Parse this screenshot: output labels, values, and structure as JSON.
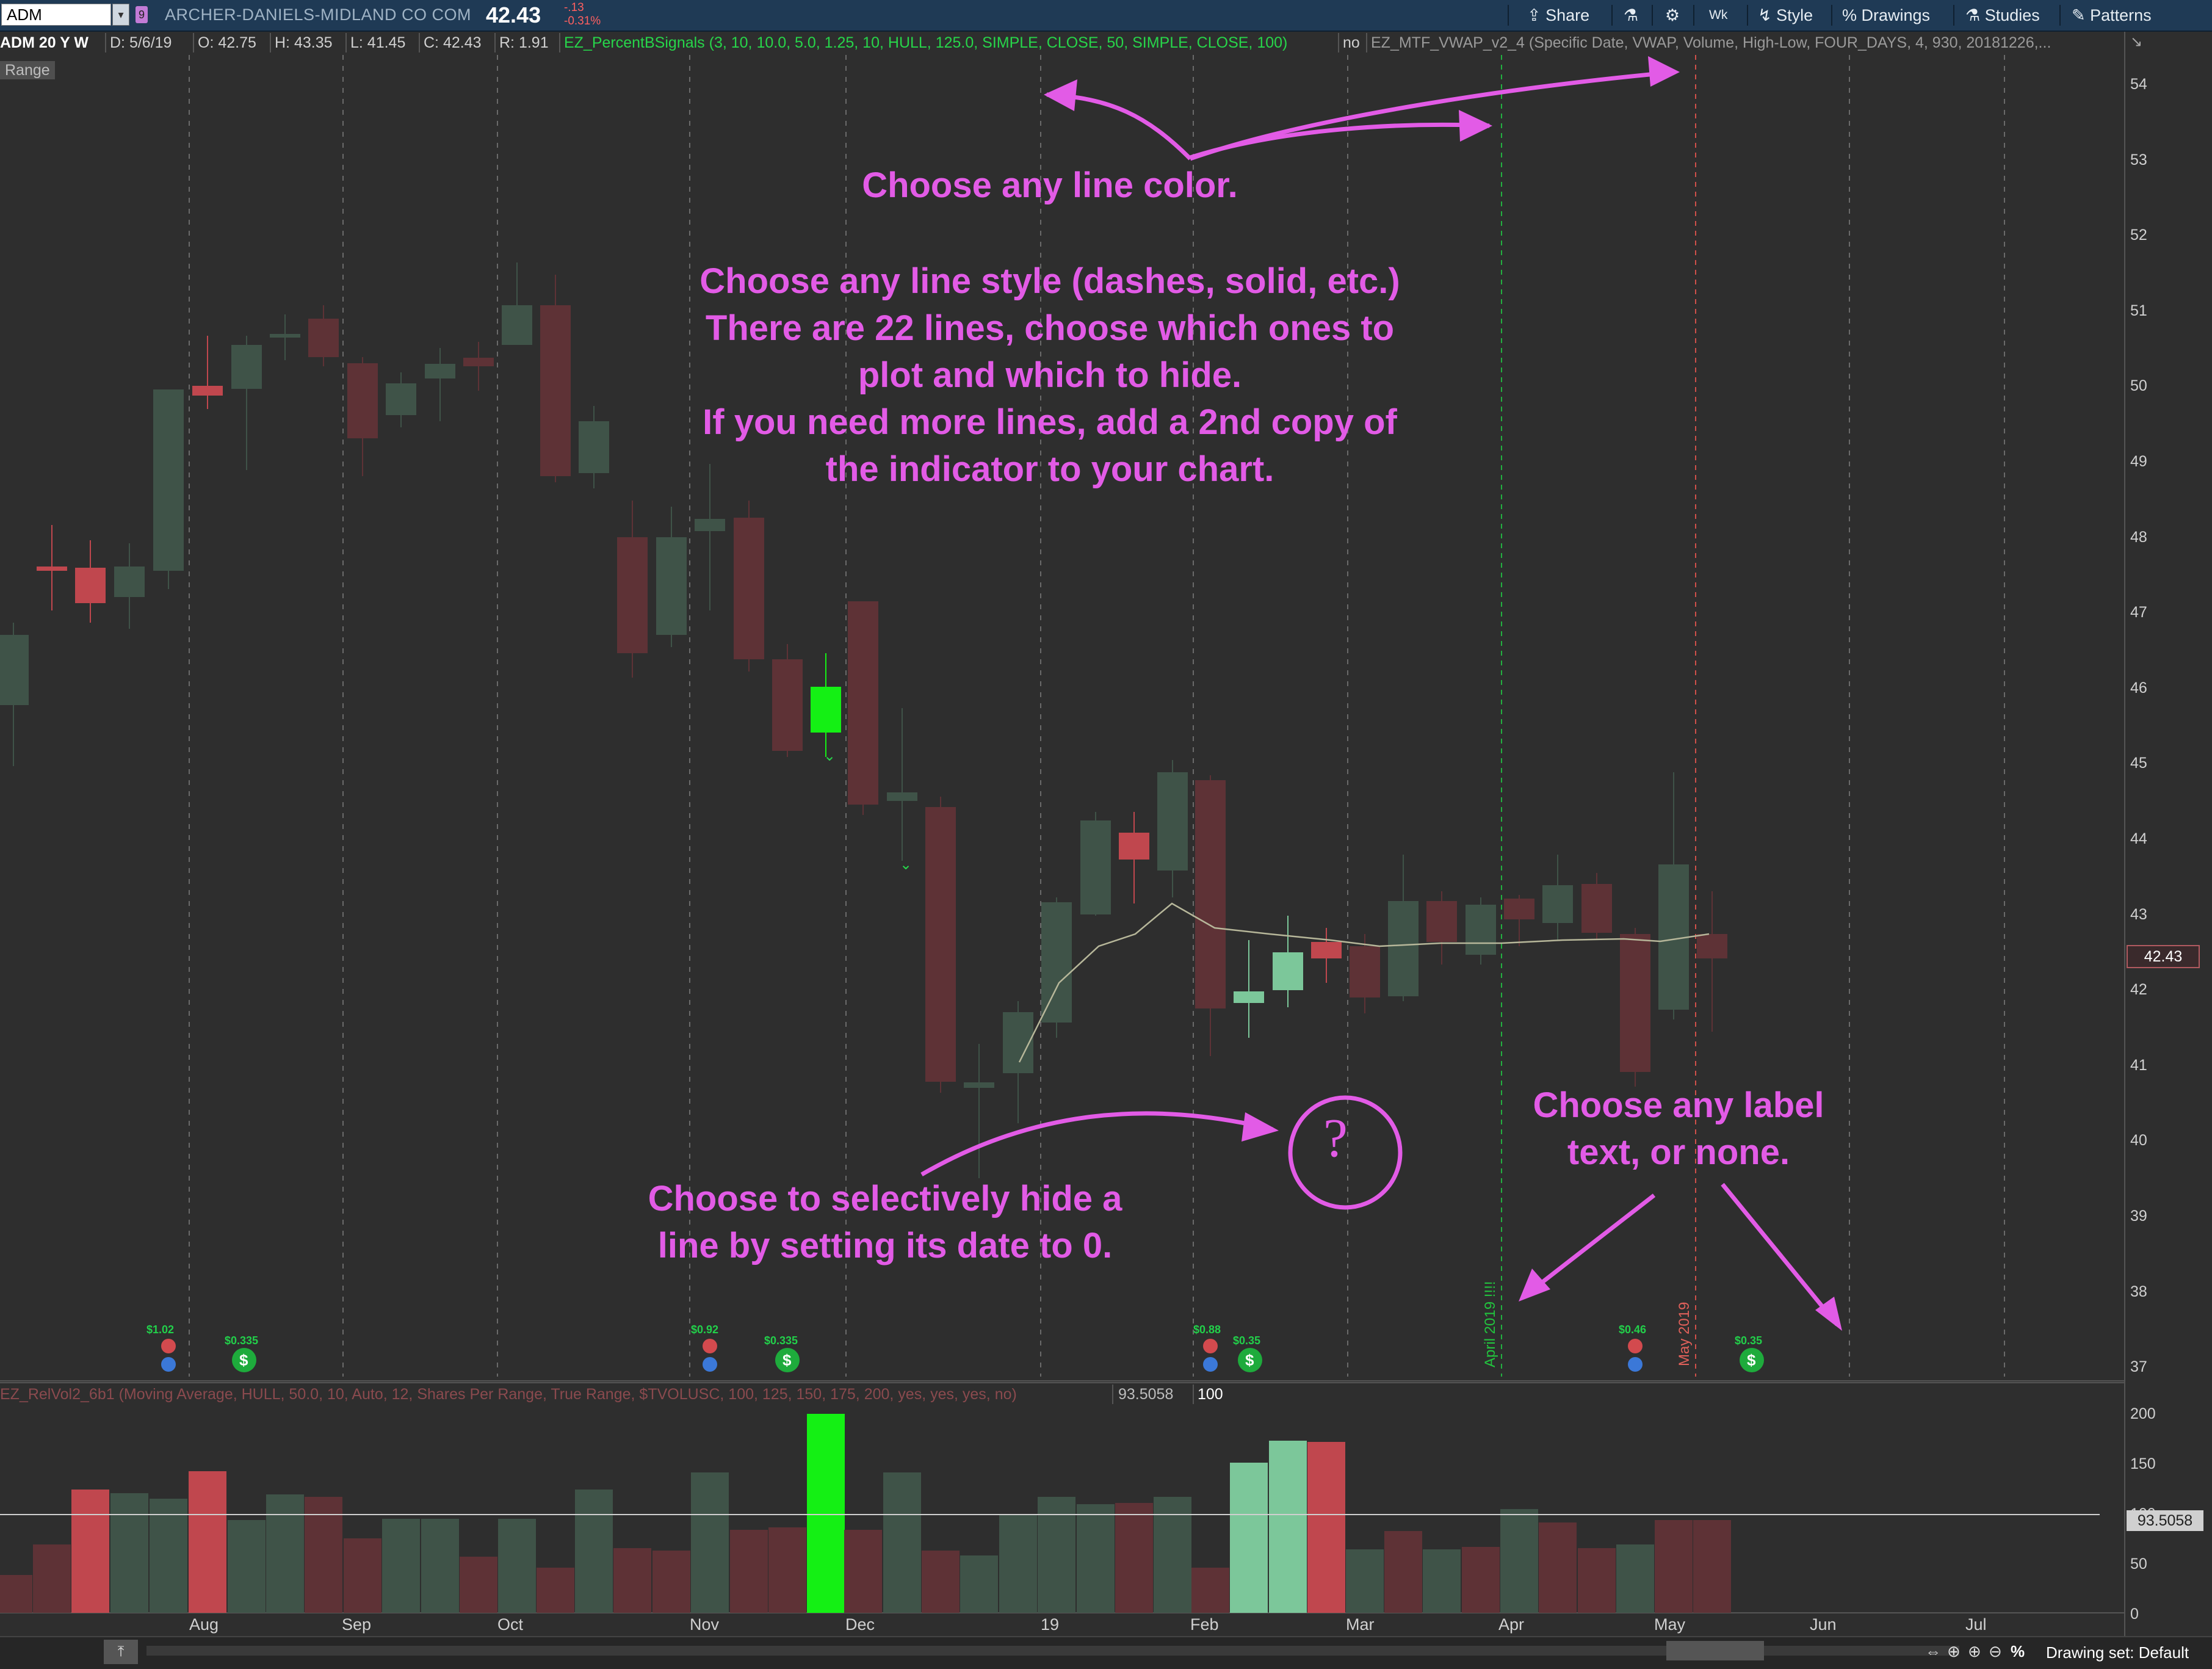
{
  "toolbar": {
    "symbol": "ADM",
    "company": "ARCHER-DANIELS-MIDLAND CO COM",
    "last_price": "42.43",
    "change_abs": "-.13",
    "change_pct": "-0.31%",
    "link_chip": "9",
    "share": "Share",
    "period": "Wk",
    "style": "Style",
    "drawings": "Drawings",
    "studies": "Studies",
    "patterns": "Patterns"
  },
  "info_row": {
    "symbol_period": "ADM 20 Y W",
    "date": "D: 5/6/19",
    "open": "O: 42.75",
    "high": "H: 43.35",
    "low": "L: 41.45",
    "close": "C: 42.43",
    "range": "R: 1.91",
    "study1": "EZ_PercentBSignals (3, 10, 10.0, 5.0, 1.25, 10, HULL, 125.0, SIMPLE, CLOSE, 50, SIMPLE, CLOSE, 100)",
    "study1_flag": "no",
    "study2": "EZ_MTF_VWAP_v2_4 (Specific Date, VWAP, Volume, High-Low, FOUR_DAYS, 4, 930, 20181226,..."
  },
  "range_badge": "Range",
  "lower_study": {
    "label": "EZ_RelVol2_6b1 (Moving Average, HULL, 50.0, 10, Auto, 12, Shares Per Range, True Range, $TVOLUSC, 100, 125, 150, 175, 200, yes, yes, yes, no)",
    "value": "93.5058",
    "threshold": "100"
  },
  "price_axis": {
    "ticks": [
      "54",
      "53",
      "52",
      "51",
      "50",
      "49",
      "48",
      "47",
      "46",
      "45",
      "44",
      "43",
      "42",
      "41",
      "40",
      "39",
      "38",
      "37"
    ],
    "current_label": "42.43"
  },
  "lower_axis": {
    "ticks": [
      "200",
      "150",
      "100",
      "50",
      "0"
    ],
    "current_label": "93.5058"
  },
  "time_axis": {
    "ticks": [
      "Aug",
      "Sep",
      "Oct",
      "Nov",
      "Dec",
      "19",
      "Feb",
      "Mar",
      "Apr",
      "May",
      "Jun",
      "Jul"
    ]
  },
  "vertical_line_labels": {
    "april": "April 2019 !!!!",
    "may": "May 2019"
  },
  "dividends": [
    "$1.02",
    "$0.335",
    "$0.92",
    "$0.335",
    "$0.88",
    "$0.35",
    "$0.46",
    "$0.35"
  ],
  "annotations": {
    "color": "Choose any line color.",
    "style": [
      "Choose any line style (dashes, solid, etc.)",
      "There are 22 lines, choose which ones to",
      "plot and which to hide.",
      "If you need more lines, add a 2nd copy of",
      "the indicator to your chart."
    ],
    "hide": [
      "Choose to selectively hide a",
      "line by setting its date to 0."
    ],
    "label": [
      "Choose any label",
      "text, or none."
    ],
    "question": "?"
  },
  "bottom_bar": {
    "drawing_set": "Drawing set: Default"
  },
  "colors": {
    "background": "#2e2e2e",
    "up_candle": "#3f5348",
    "down_candle": "#5e3236",
    "annotation": "#e25be6",
    "toolbar": "#1f3a55"
  }
}
